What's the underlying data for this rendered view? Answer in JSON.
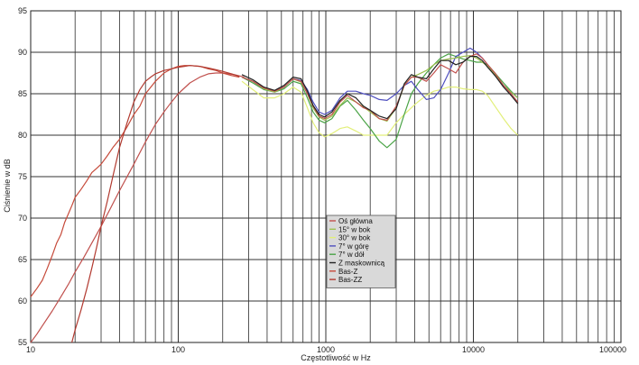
{
  "chart_data": {
    "type": "line",
    "xscale": "log",
    "xlim": [
      10,
      100000
    ],
    "ylim": [
      55,
      95
    ],
    "xlabel": "Częstotliwość w Hz",
    "ylabel": "Ciśnienie w dB",
    "x_ticks": [
      10,
      100,
      1000,
      10000,
      100000
    ],
    "x_tick_labels": [
      "10",
      "100",
      "1000",
      "10000",
      "100000"
    ],
    "y_ticks": [
      55,
      60,
      65,
      70,
      75,
      80,
      85,
      90,
      95
    ],
    "grid": true,
    "legend_position": "center-bottom",
    "series": [
      {
        "name": "Oś główna",
        "color": "#c0504d",
        "x": [
          270,
          320,
          380,
          450,
          520,
          600,
          680,
          750,
          820,
          900,
          980,
          1100,
          1250,
          1400,
          1600,
          1800,
          2000,
          2300,
          2600,
          3000,
          3400,
          3800,
          4200,
          4800,
          5400,
          6000,
          6800,
          7600,
          8500,
          9500,
          10500,
          11500,
          12500,
          14000,
          16000,
          18000,
          20000
        ],
        "y": [
          87,
          86.5,
          85.7,
          85.3,
          85.8,
          86.8,
          86.5,
          85,
          83.5,
          82.3,
          82,
          82.5,
          84,
          84.8,
          84,
          83.3,
          83,
          82,
          81.8,
          83.5,
          86,
          87,
          87,
          86.5,
          87.5,
          88.5,
          88,
          87.5,
          88.8,
          89.5,
          89.8,
          89.3,
          88.5,
          87.5,
          86,
          85,
          84
        ]
      },
      {
        "name": "15° w bok",
        "color": "#9dc050",
        "x": [
          270,
          320,
          380,
          450,
          520,
          600,
          680,
          750,
          820,
          900,
          980,
          1100,
          1250,
          1400,
          1600,
          1800,
          2000,
          2300,
          2600,
          3000,
          3400,
          3800,
          4200,
          4800,
          5400,
          6000,
          6800,
          7600,
          8500,
          9500,
          10500,
          11500,
          12500,
          14000,
          16000,
          18000,
          20000
        ],
        "y": [
          87,
          86.5,
          85.6,
          85.2,
          85.8,
          86.8,
          86.4,
          85,
          83.3,
          82.2,
          81.8,
          82.3,
          83.6,
          84.5,
          84,
          83.4,
          82.8,
          82,
          81.7,
          83.3,
          86,
          87,
          87.3,
          87.8,
          88.5,
          89,
          89.2,
          89.3,
          89.5,
          89.6,
          89.3,
          88.8,
          88.3,
          87.3,
          86,
          85.2,
          84.5
        ]
      },
      {
        "name": "30° w bok",
        "color": "#e2ef7a",
        "x": [
          270,
          320,
          380,
          450,
          520,
          600,
          680,
          750,
          820,
          900,
          980,
          1100,
          1250,
          1400,
          1600,
          1800,
          2000,
          2300,
          2600,
          3000,
          3400,
          3800,
          4200,
          4800,
          5400,
          6000,
          6800,
          7600,
          8500,
          9500,
          10500,
          11500,
          12500,
          14000,
          16000,
          18000,
          20000
        ],
        "y": [
          86.5,
          85.5,
          84.5,
          84.5,
          85,
          85.8,
          85.2,
          83.3,
          81.5,
          80.3,
          79.8,
          80.2,
          80.8,
          81,
          80.5,
          80,
          80,
          80,
          80,
          81.5,
          82.5,
          83.3,
          84,
          84.8,
          85.3,
          85.5,
          85.8,
          85.8,
          85.6,
          85.5,
          85.5,
          85.3,
          84.8,
          83.5,
          82,
          80.8,
          80
        ]
      },
      {
        "name": "7° w górę",
        "color": "#4f4fbf",
        "x": [
          270,
          320,
          380,
          450,
          520,
          600,
          680,
          750,
          820,
          900,
          980,
          1100,
          1250,
          1400,
          1600,
          1800,
          2000,
          2300,
          2600,
          3000,
          3400,
          3800,
          4200,
          4800,
          5400,
          6000,
          6800,
          7600,
          8500,
          9500,
          10500,
          11500,
          12500,
          14000,
          16000,
          18000,
          20000
        ],
        "y": [
          87,
          86.5,
          85.6,
          85.3,
          85.8,
          86.8,
          86.6,
          85.5,
          84,
          82.8,
          82.5,
          83,
          84.5,
          85.3,
          85.3,
          85,
          84.8,
          84.3,
          84.2,
          85,
          86,
          86.5,
          85.5,
          84.3,
          84.5,
          85.5,
          87.5,
          89.5,
          90,
          90.5,
          90,
          89.3,
          88.5,
          87.2,
          86,
          85.2,
          84.5
        ]
      },
      {
        "name": "7° w dół",
        "color": "#4aa346",
        "x": [
          270,
          320,
          380,
          450,
          520,
          600,
          680,
          750,
          820,
          900,
          980,
          1100,
          1250,
          1400,
          1600,
          1800,
          2000,
          2300,
          2600,
          3000,
          3400,
          3800,
          4200,
          4800,
          5400,
          6000,
          6800,
          7600,
          8500,
          9500,
          10500,
          11500,
          12500,
          14000,
          16000,
          18000,
          20000
        ],
        "y": [
          87,
          86.3,
          85.5,
          85.2,
          85.6,
          86.5,
          86.2,
          84.5,
          82.8,
          81.8,
          81.5,
          82,
          83.5,
          84.2,
          83,
          81.8,
          80.8,
          79.3,
          78.5,
          79.5,
          82.5,
          85,
          86.2,
          87.5,
          88.5,
          89.3,
          89.8,
          89.5,
          89.2,
          89,
          88.8,
          88.8,
          88.5,
          87.5,
          86.3,
          85.3,
          84.5
        ]
      },
      {
        "name": "Z maskownicą",
        "color": "#222222",
        "x": [
          270,
          320,
          380,
          450,
          520,
          600,
          680,
          750,
          820,
          900,
          980,
          1100,
          1250,
          1400,
          1600,
          1800,
          2000,
          2300,
          2600,
          3000,
          3400,
          3800,
          4200,
          4800,
          5400,
          6000,
          6800,
          7600,
          8500,
          9500,
          10500,
          11500,
          12500,
          14000,
          16000,
          18000,
          20000
        ],
        "y": [
          87.3,
          86.7,
          85.8,
          85.4,
          86,
          87,
          86.8,
          85.3,
          83.6,
          82.5,
          82.2,
          82.8,
          84.2,
          85,
          84.5,
          83.5,
          83,
          82.3,
          82,
          83.2,
          86.2,
          87.3,
          87,
          86.8,
          88,
          89,
          89,
          88.5,
          88.8,
          89.5,
          89.5,
          89,
          88.2,
          87.2,
          85.8,
          84.8,
          83.8
        ]
      },
      {
        "name": "Bas-Z",
        "color": "#c64a3a",
        "x": [
          10,
          11,
          12,
          13,
          14,
          15,
          16,
          17,
          18,
          19,
          20,
          22,
          24,
          26,
          28,
          30,
          33,
          36,
          40,
          45,
          50,
          55,
          60,
          70,
          80,
          90,
          100,
          110,
          120,
          140,
          160,
          180,
          200,
          230,
          260
        ],
        "y": [
          60.5,
          61.5,
          62.5,
          64,
          65.5,
          67,
          68,
          69.5,
          70.5,
          71.5,
          72.5,
          73.5,
          74.5,
          75.5,
          76,
          76.5,
          77.5,
          78.5,
          79.5,
          81,
          82.5,
          83.5,
          85,
          86.5,
          87.5,
          88,
          88.3,
          88.4,
          88.4,
          88.3,
          88,
          87.8,
          87.5,
          87.2,
          87
        ]
      },
      {
        "name": "Bas-ZZ",
        "color": "#b23a30",
        "x": [
          19,
          20,
          22,
          24,
          26,
          28,
          30,
          33,
          36,
          40,
          45,
          50,
          55,
          60,
          65,
          70,
          80,
          90,
          100,
          110,
          120,
          140,
          160,
          180,
          200,
          230,
          260
        ],
        "y": [
          55,
          56.5,
          59,
          61.5,
          64,
          66.5,
          69,
          72,
          75,
          78.5,
          81.5,
          84,
          85.5,
          86.5,
          87,
          87.4,
          87.8,
          88,
          88.2,
          88.3,
          88.4,
          88.3,
          88.1,
          87.9,
          87.7,
          87.4,
          87.1
        ]
      }
    ],
    "extra_curves": [
      {
        "color": "#c0504d",
        "x": [
          10,
          11,
          12,
          14,
          16,
          18,
          20,
          23,
          26,
          30,
          35,
          40,
          50,
          60,
          70,
          80,
          90,
          100,
          120,
          140,
          160,
          180,
          200,
          240,
          280
        ],
        "y": [
          55,
          56,
          57,
          58.8,
          60.5,
          62,
          63.5,
          65.3,
          67,
          69,
          71.3,
          73.3,
          76.5,
          79.2,
          81.3,
          82.8,
          84,
          85,
          86.3,
          87,
          87.4,
          87.5,
          87.5,
          87.3,
          87
        ]
      }
    ]
  }
}
